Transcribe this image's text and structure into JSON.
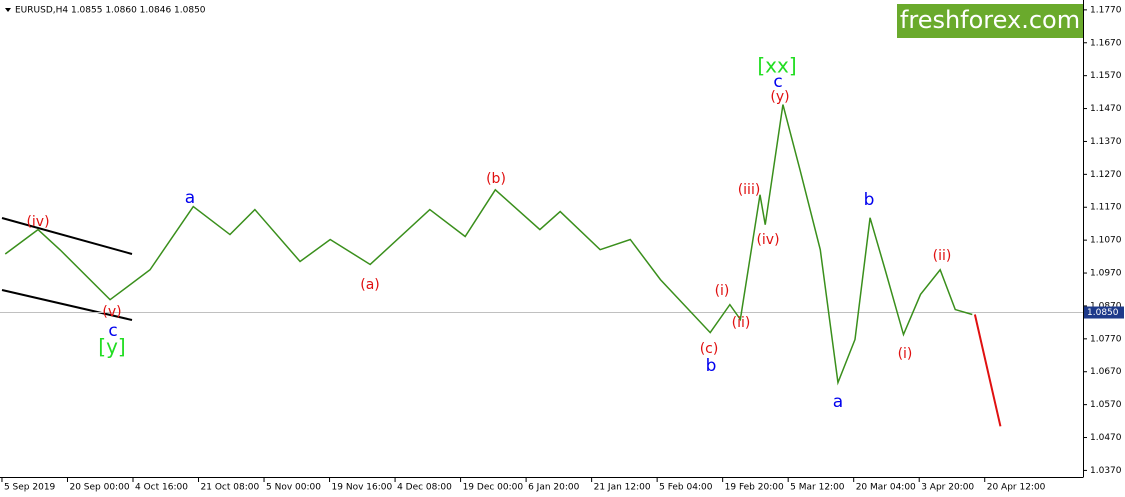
{
  "chart_data": {
    "type": "line",
    "title": "EURUSD,H4  1.0855 1.0860 1.0846 1.0850",
    "logo": "freshforex.com",
    "xlim": [
      -0.03,
      16.5
    ],
    "ylim": [
      1.035,
      1.18
    ],
    "xticks": [
      {
        "value": 0,
        "label": "5 Sep 2019"
      },
      {
        "value": 1,
        "label": "20 Sep 00:00"
      },
      {
        "value": 2,
        "label": "4 Oct 16:00"
      },
      {
        "value": 3,
        "label": "21 Oct 08:00"
      },
      {
        "value": 4,
        "label": "5 Nov 00:00"
      },
      {
        "value": 5,
        "label": "19 Nov 16:00"
      },
      {
        "value": 6,
        "label": "4 Dec 08:00"
      },
      {
        "value": 7,
        "label": "19 Dec 00:00"
      },
      {
        "value": 8,
        "label": "6 Jan 20:00"
      },
      {
        "value": 9,
        "label": "21 Jan 12:00"
      },
      {
        "value": 10,
        "label": "5 Feb 04:00"
      },
      {
        "value": 11,
        "label": "19 Feb 20:00"
      },
      {
        "value": 12,
        "label": "5 Mar 12:00"
      },
      {
        "value": 13,
        "label": "20 Mar 04:00"
      },
      {
        "value": 14,
        "label": "3 Apr 20:00"
      },
      {
        "value": 15,
        "label": "20 Apr 12:00"
      }
    ],
    "yticks": [
      {
        "value": 1.177,
        "label": "1.1770"
      },
      {
        "value": 1.167,
        "label": "1.1670"
      },
      {
        "value": 1.157,
        "label": "1.1570"
      },
      {
        "value": 1.147,
        "label": "1.1470"
      },
      {
        "value": 1.137,
        "label": "1.1370"
      },
      {
        "value": 1.127,
        "label": "1.1270"
      },
      {
        "value": 1.117,
        "label": "1.1170"
      },
      {
        "value": 1.107,
        "label": "1.1070"
      },
      {
        "value": 1.097,
        "label": "1.0970"
      },
      {
        "value": 1.087,
        "label": "1.0870"
      },
      {
        "value": 1.077,
        "label": "1.0770"
      },
      {
        "value": 1.067,
        "label": "1.0670"
      },
      {
        "value": 1.057,
        "label": "1.0570"
      },
      {
        "value": 1.047,
        "label": "1.0470"
      },
      {
        "value": 1.037,
        "label": "1.0370"
      }
    ],
    "current_price": {
      "value": 1.085,
      "label": "1.0850"
    },
    "series": [
      {
        "color": "#3a8f1c",
        "x": [
          0.05,
          0.55,
          0.89,
          1.65,
          2.26,
          2.92,
          3.48,
          3.86,
          4.55,
          5.01,
          5.62,
          6.53,
          7.07,
          7.53,
          8.21,
          8.52,
          9.13,
          9.59,
          10.05,
          10.81,
          11.11,
          11.27,
          11.57,
          11.65,
          11.92,
          12.18,
          12.49,
          12.76,
          13.02,
          13.25,
          13.48,
          13.76,
          14.02,
          14.32,
          14.55,
          14.81
        ],
        "values": [
          1.1028,
          1.1102,
          1.104,
          1.0889,
          1.098,
          1.1172,
          1.1087,
          1.1163,
          1.1005,
          1.1072,
          1.0996,
          1.1163,
          1.1081,
          1.1223,
          1.1102,
          1.1157,
          1.1041,
          1.1072,
          1.095,
          1.0789,
          1.0874,
          1.0829,
          1.1208,
          1.1117,
          1.1482,
          1.1284,
          1.1041,
          1.0637,
          1.0768,
          1.1138,
          1.098,
          1.0783,
          1.0905,
          1.098,
          1.0859,
          1.0844
        ]
      },
      {
        "color": "#e01010",
        "x": [
          14.85,
          15.24
        ],
        "values": [
          1.0844,
          1.0504
        ]
      }
    ],
    "annotations": [
      {
        "text": "(iv)",
        "color": "#e01010"
      },
      {
        "text": "(v)",
        "color": "#e01010"
      },
      {
        "text": "c",
        "color": "#0000ee"
      },
      {
        "text": "[y]",
        "color": "#22dd22"
      },
      {
        "text": "a",
        "color": "#0000ee"
      },
      {
        "text": "(a)",
        "color": "#e01010"
      },
      {
        "text": "(b)",
        "color": "#e01010"
      },
      {
        "text": "(c)",
        "color": "#e01010"
      },
      {
        "text": "b",
        "color": "#0000ee"
      },
      {
        "text": "(i)",
        "color": "#e01010"
      },
      {
        "text": "(ii)",
        "color": "#e01010"
      },
      {
        "text": "(iii)",
        "color": "#e01010"
      },
      {
        "text": "(iv)",
        "color": "#e01010"
      },
      {
        "text": "[xx]",
        "color": "#22dd22"
      },
      {
        "text": "c",
        "color": "#0000ee"
      },
      {
        "text": "(y)",
        "color": "#e01010"
      },
      {
        "text": "a",
        "color": "#0000ee"
      },
      {
        "text": "b",
        "color": "#0000ee"
      },
      {
        "text": "(ii)",
        "color": "#e01010"
      },
      {
        "text": "(i)",
        "color": "#e01010"
      }
    ]
  }
}
